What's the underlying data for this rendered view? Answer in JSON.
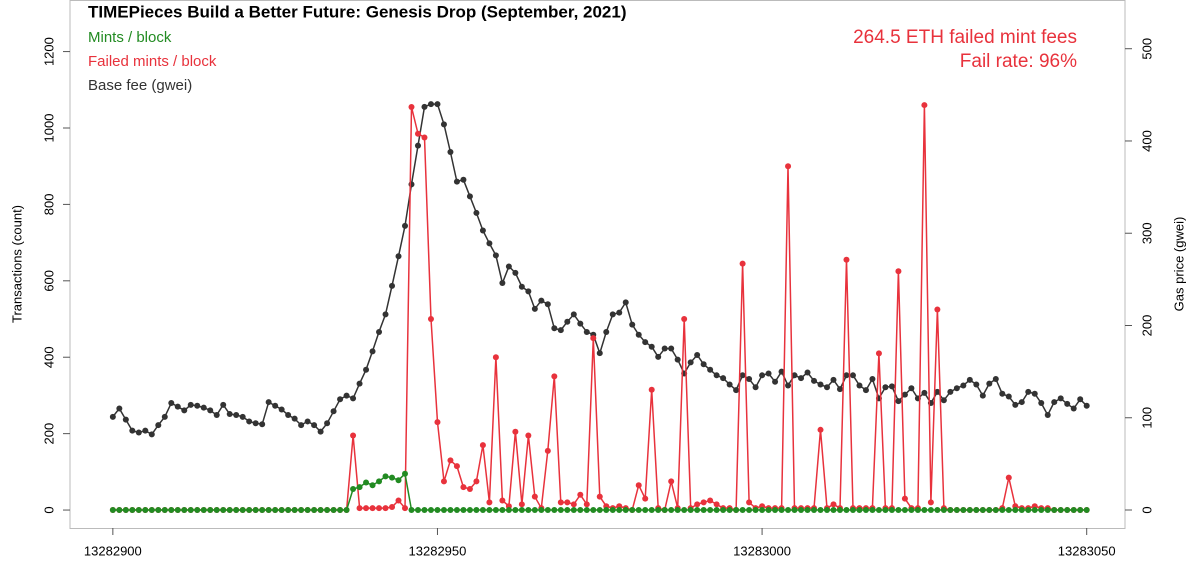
{
  "chart_data": {
    "type": "line",
    "title": "TIMEPieces Build a Better Future: Genesis Drop (September, 2021)",
    "annotations": [
      "264.5 ETH failed mint fees",
      "Fail rate: 96%"
    ],
    "ylabel": "Transactions (count)",
    "y2label": "Gas price (gwei)",
    "xlim": [
      13282893.4,
      13283055.9
    ],
    "xticks": [
      13282900,
      13282950,
      13283000,
      13283050
    ],
    "ylim": [
      -47,
      1335
    ],
    "yticks": [
      0,
      200,
      400,
      600,
      800,
      1000,
      1200
    ],
    "y2lim": [
      -19.5,
      552.8
    ],
    "y2ticks": [
      0,
      100,
      200,
      300,
      400,
      500
    ],
    "legend": "top-left",
    "x": [
      13282900,
      13282901,
      13282902,
      13282903,
      13282904,
      13282905,
      13282906,
      13282907,
      13282908,
      13282909,
      13282910,
      13282911,
      13282912,
      13282913,
      13282914,
      13282915,
      13282916,
      13282917,
      13282918,
      13282919,
      13282920,
      13282921,
      13282922,
      13282923,
      13282924,
      13282925,
      13282926,
      13282927,
      13282928,
      13282929,
      13282930,
      13282931,
      13282932,
      13282933,
      13282934,
      13282935,
      13282936,
      13282937,
      13282938,
      13282939,
      13282940,
      13282941,
      13282942,
      13282943,
      13282944,
      13282945,
      13282946,
      13282947,
      13282948,
      13282949,
      13282950,
      13282951,
      13282952,
      13282953,
      13282954,
      13282955,
      13282956,
      13282957,
      13282958,
      13282959,
      13282960,
      13282961,
      13282962,
      13282963,
      13282964,
      13282965,
      13282966,
      13282967,
      13282968,
      13282969,
      13282970,
      13282971,
      13282972,
      13282973,
      13282974,
      13282975,
      13282976,
      13282977,
      13282978,
      13282979,
      13282980,
      13282981,
      13282982,
      13282983,
      13282984,
      13282985,
      13282986,
      13282987,
      13282988,
      13282989,
      13282990,
      13282991,
      13282992,
      13282993,
      13282994,
      13282995,
      13282996,
      13282997,
      13282998,
      13282999,
      13283000,
      13283001,
      13283002,
      13283003,
      13283004,
      13283005,
      13283006,
      13283007,
      13283008,
      13283009,
      13283010,
      13283011,
      13283012,
      13283013,
      13283014,
      13283015,
      13283016,
      13283017,
      13283018,
      13283019,
      13283020,
      13283021,
      13283022,
      13283023,
      13283024,
      13283025,
      13283026,
      13283027,
      13283028,
      13283029,
      13283030,
      13283031,
      13283032,
      13283033,
      13283034,
      13283035,
      13283036,
      13283037,
      13283038,
      13283039,
      13283040,
      13283041,
      13283042,
      13283043,
      13283044,
      13283045,
      13283046,
      13283047,
      13283048,
      13283049,
      13283050
    ],
    "series": [
      {
        "name": "Mints / block",
        "color": "#228b22",
        "values": [
          0,
          0,
          0,
          0,
          0,
          0,
          0,
          0,
          0,
          0,
          0,
          0,
          0,
          0,
          0,
          0,
          0,
          0,
          0,
          0,
          0,
          0,
          0,
          0,
          0,
          0,
          0,
          0,
          0,
          0,
          0,
          0,
          0,
          0,
          0,
          0,
          0,
          55,
          60,
          72,
          65,
          75,
          88,
          85,
          78,
          95,
          0,
          0,
          0,
          0,
          0,
          0,
          0,
          0,
          0,
          0,
          0,
          0,
          0,
          0,
          0,
          0,
          0,
          0,
          0,
          0,
          0,
          0,
          0,
          0,
          0,
          0,
          0,
          0,
          0,
          0,
          0,
          0,
          0,
          0,
          0,
          0,
          0,
          0,
          0,
          0,
          0,
          0,
          0,
          0,
          0,
          0,
          0,
          0,
          0,
          0,
          0,
          0,
          0,
          0,
          0,
          0,
          0,
          0,
          0,
          0,
          0,
          0,
          0,
          0,
          0,
          0,
          0,
          0,
          0,
          0,
          0,
          0,
          0,
          0,
          0,
          0,
          0,
          0,
          0,
          0,
          0,
          0,
          0,
          0,
          0,
          0,
          0,
          0,
          0,
          0,
          0,
          0,
          0,
          0,
          0,
          0,
          0,
          0,
          0,
          0,
          0,
          0,
          0,
          0,
          0
        ]
      },
      {
        "name": "Failed mints / block",
        "color": "#e8323c",
        "values": [
          0,
          0,
          0,
          0,
          0,
          0,
          0,
          0,
          0,
          0,
          0,
          0,
          0,
          0,
          0,
          0,
          0,
          0,
          0,
          0,
          0,
          0,
          0,
          0,
          0,
          0,
          0,
          0,
          0,
          0,
          0,
          0,
          0,
          0,
          0,
          0,
          0,
          195,
          5,
          5,
          5,
          5,
          5,
          8,
          25,
          5,
          1055,
          985,
          975,
          500,
          230,
          75,
          130,
          115,
          60,
          55,
          75,
          170,
          20,
          400,
          25,
          10,
          205,
          15,
          195,
          35,
          5,
          155,
          350,
          20,
          20,
          15,
          40,
          15,
          450,
          35,
          10,
          5,
          10,
          5,
          0,
          65,
          30,
          315,
          5,
          0,
          75,
          5,
          500,
          5,
          15,
          20,
          25,
          15,
          5,
          5,
          0,
          645,
          20,
          5,
          10,
          5,
          5,
          5,
          900,
          5,
          5,
          5,
          5,
          210,
          5,
          15,
          5,
          655,
          5,
          5,
          5,
          5,
          410,
          5,
          5,
          625,
          30,
          5,
          5,
          1060,
          20,
          525,
          5,
          0,
          0,
          0,
          0,
          0,
          0,
          0,
          0,
          5,
          85,
          10,
          5,
          5,
          10,
          5,
          5,
          0,
          0,
          0,
          0,
          0,
          0
        ]
      },
      {
        "name": "Base fee (gwei)",
        "color": "#333333",
        "axis": "y2",
        "values": [
          101,
          110,
          98,
          86,
          84,
          86,
          82,
          92,
          101,
          116,
          112,
          108,
          114,
          113,
          111,
          108,
          103,
          114,
          104,
          103,
          101,
          96,
          94,
          93,
          117,
          113,
          109,
          103,
          99,
          92,
          96,
          92,
          85,
          94,
          107,
          120,
          124,
          121,
          137,
          152,
          172,
          193,
          212,
          243,
          275,
          308,
          353,
          395,
          437,
          440,
          440,
          418,
          388,
          356,
          358,
          340,
          322,
          303,
          289,
          276,
          246,
          264,
          257,
          242,
          237,
          218,
          227,
          223,
          197,
          195,
          204,
          212,
          202,
          193,
          190,
          170,
          193,
          212,
          214,
          225,
          201,
          190,
          182,
          177,
          166,
          175,
          175,
          163,
          148,
          160,
          168,
          158,
          152,
          146,
          143,
          136,
          130,
          146,
          142,
          133,
          146,
          148,
          139,
          150,
          135,
          146,
          143,
          149,
          140,
          136,
          133,
          141,
          131,
          146,
          146,
          135,
          130,
          142,
          121,
          133,
          134,
          118,
          125,
          132,
          121,
          127,
          116,
          128,
          119,
          128,
          132,
          135,
          141,
          136,
          124,
          137,
          142,
          126,
          123,
          114,
          117,
          128,
          126,
          116,
          103,
          117,
          121,
          115,
          110,
          120,
          113
        ]
      }
    ]
  }
}
